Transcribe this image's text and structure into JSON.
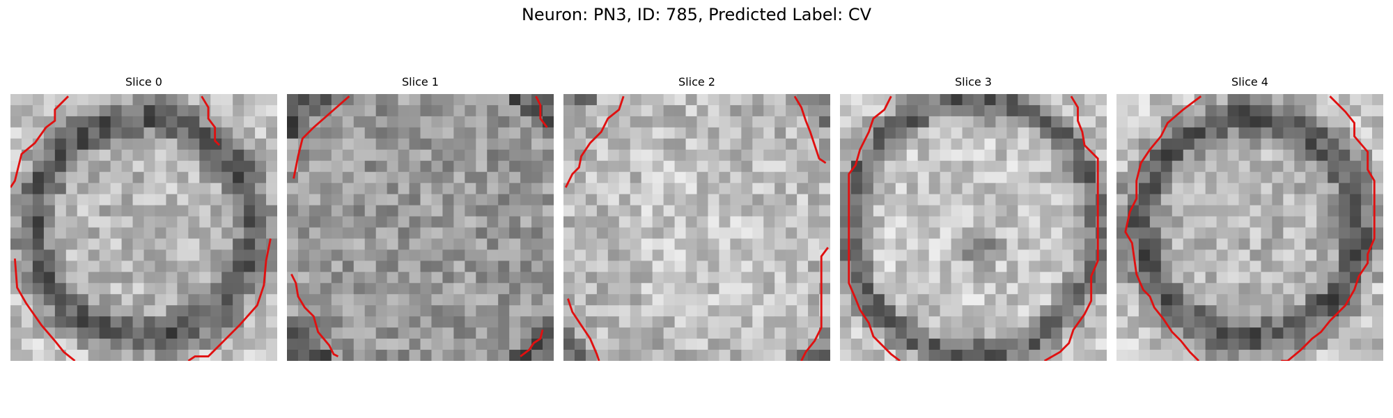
{
  "figure": {
    "title": "Neuron: PN3, ID: 785, Predicted Label: CV",
    "contour_color": "#e01010",
    "colormap": "grayscale",
    "grid_size": 24
  },
  "slices": [
    {
      "title": "Slice 0",
      "pattern": "ring"
    },
    {
      "title": "Slice 1",
      "pattern": "noisy"
    },
    {
      "title": "Slice 2",
      "pattern": "bright"
    },
    {
      "title": "Slice 3",
      "pattern": "ring-dark-spot"
    },
    {
      "title": "Slice 4",
      "pattern": "ring"
    }
  ]
}
